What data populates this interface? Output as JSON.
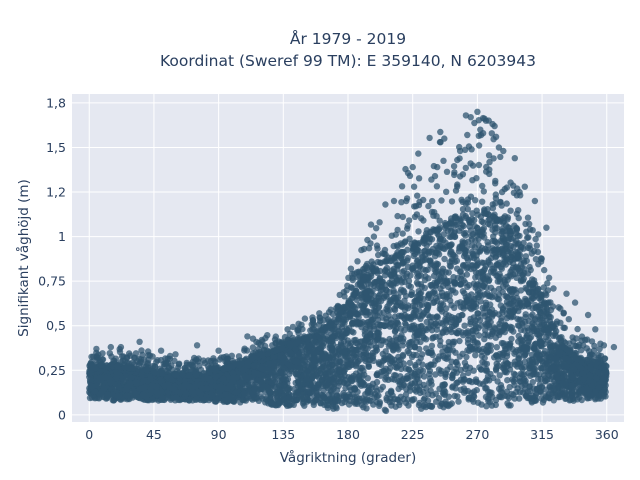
{
  "chart_data": {
    "type": "scatter",
    "title_lines": [
      "År 1979 - 2019",
      "Koordinat (Sweref 99 TM): E 359140, N 6203943"
    ],
    "xlabel": "Vågriktning (grader)",
    "ylabel": "Signifikant våghöjd (m)",
    "xlim": [
      -12,
      372
    ],
    "ylim": [
      -0.04,
      1.8
    ],
    "xticks": [
      0,
      45,
      90,
      135,
      180,
      225,
      270,
      315,
      360
    ],
    "xtick_labels": [
      "0",
      "45",
      "90",
      "135",
      "180",
      "225",
      "270",
      "315",
      "360"
    ],
    "yticks": [
      0,
      0.25,
      0.5,
      0.75,
      1,
      1.25,
      1.5,
      1.75
    ],
    "ytick_labels": [
      "0",
      "0,25",
      "0,5",
      "0,75",
      "1",
      "1,2",
      "1,5",
      "1,8"
    ],
    "grid": true,
    "marker_color": "#2f5570",
    "plot_background": "#e5e8f1",
    "envelope": {
      "direction": [
        0,
        10,
        20,
        30,
        40,
        50,
        60,
        70,
        80,
        90,
        100,
        110,
        120,
        130,
        140,
        150,
        160,
        170,
        180,
        190,
        200,
        210,
        220,
        230,
        240,
        250,
        260,
        270,
        280,
        290,
        300,
        310,
        320,
        330,
        340,
        350,
        360
      ],
      "lower": [
        0.09,
        0.08,
        0.08,
        0.08,
        0.08,
        0.08,
        0.08,
        0.08,
        0.08,
        0.07,
        0.07,
        0.07,
        0.06,
        0.05,
        0.05,
        0.04,
        0.04,
        0.03,
        0.02,
        0.02,
        0.02,
        0.02,
        0.03,
        0.03,
        0.04,
        0.04,
        0.04,
        0.04,
        0.04,
        0.05,
        0.05,
        0.06,
        0.06,
        0.07,
        0.08,
        0.08,
        0.09
      ],
      "dense_upper": [
        0.27,
        0.28,
        0.27,
        0.26,
        0.25,
        0.23,
        0.22,
        0.22,
        0.23,
        0.25,
        0.27,
        0.3,
        0.33,
        0.36,
        0.39,
        0.42,
        0.46,
        0.52,
        0.62,
        0.75,
        0.82,
        0.88,
        0.92,
        0.96,
        1.02,
        1.06,
        1.1,
        1.14,
        1.12,
        1.05,
        0.95,
        0.75,
        0.55,
        0.38,
        0.32,
        0.3,
        0.28
      ],
      "max": [
        0.34,
        0.36,
        0.38,
        0.35,
        0.38,
        0.33,
        0.33,
        0.32,
        0.33,
        0.33,
        0.35,
        0.42,
        0.44,
        0.46,
        0.5,
        0.54,
        0.57,
        0.6,
        0.78,
        0.95,
        1.18,
        1.25,
        1.38,
        1.55,
        1.58,
        1.62,
        1.68,
        1.7,
        1.65,
        1.45,
        1.32,
        1.1,
        0.78,
        0.62,
        0.5,
        0.43,
        0.38
      ]
    },
    "outliers": [
      {
        "x": 247,
        "y": 1.55
      },
      {
        "x": 244,
        "y": 1.53
      },
      {
        "x": 262,
        "y": 1.68
      },
      {
        "x": 270,
        "y": 1.7
      },
      {
        "x": 276,
        "y": 1.65
      },
      {
        "x": 272,
        "y": 1.6
      },
      {
        "x": 263,
        "y": 1.57
      },
      {
        "x": 274,
        "y": 1.58
      },
      {
        "x": 288,
        "y": 1.48
      },
      {
        "x": 296,
        "y": 1.44
      },
      {
        "x": 266,
        "y": 1.49
      },
      {
        "x": 256,
        "y": 1.43
      },
      {
        "x": 225,
        "y": 1.39
      },
      {
        "x": 238,
        "y": 1.32
      },
      {
        "x": 212,
        "y": 1.2
      },
      {
        "x": 206,
        "y": 1.18
      },
      {
        "x": 226,
        "y": 1.28
      },
      {
        "x": 202,
        "y": 1.08
      },
      {
        "x": 198,
        "y": 1.0
      },
      {
        "x": 303,
        "y": 1.28
      },
      {
        "x": 310,
        "y": 1.2
      },
      {
        "x": 318,
        "y": 1.05
      },
      {
        "x": 182,
        "y": 0.82
      },
      {
        "x": 332,
        "y": 0.68
      },
      {
        "x": 338,
        "y": 0.63
      },
      {
        "x": 347,
        "y": 0.56
      },
      {
        "x": 352,
        "y": 0.48
      },
      {
        "x": 160,
        "y": 0.57
      },
      {
        "x": 150,
        "y": 0.54
      },
      {
        "x": 138,
        "y": 0.48
      },
      {
        "x": 110,
        "y": 0.44
      },
      {
        "x": 120,
        "y": 0.42
      },
      {
        "x": 35,
        "y": 0.41
      },
      {
        "x": 75,
        "y": 0.39
      },
      {
        "x": 60,
        "y": 0.34
      },
      {
        "x": 15,
        "y": 0.38
      },
      {
        "x": 5,
        "y": 0.37
      },
      {
        "x": 22,
        "y": 0.38
      },
      {
        "x": 50,
        "y": 0.36
      },
      {
        "x": 90,
        "y": 0.36
      },
      {
        "x": 358,
        "y": 0.39
      },
      {
        "x": 345,
        "y": 0.42
      },
      {
        "x": 365,
        "y": 0.38
      },
      {
        "x": 168,
        "y": 0.59
      },
      {
        "x": 254,
        "y": 1.36
      },
      {
        "x": 282,
        "y": 1.62
      },
      {
        "x": 285,
        "y": 1.5
      },
      {
        "x": 258,
        "y": 1.48
      }
    ]
  }
}
